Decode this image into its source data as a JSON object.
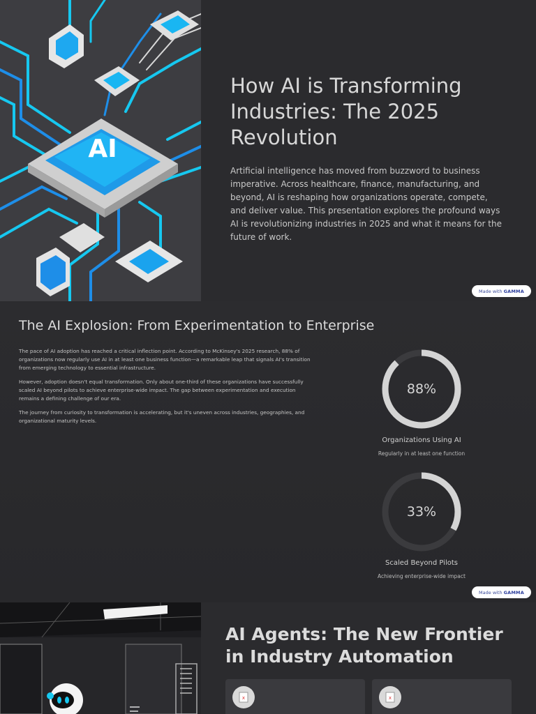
{
  "slide1": {
    "title": "How AI is Transforming Industries: The 2025 Revolution",
    "body": "Artificial intelligence has moved from buzzword to business imperative. Across healthcare, finance, manufacturing, and beyond, AI is reshaping how organizations operate, compete, and deliver value. This presentation explores the profound ways AI is revolutionizing industries in 2025 and what it means for the future of work.",
    "chip_text": "AI",
    "badge": {
      "prefix": "Made with",
      "brand": "GAMMA"
    }
  },
  "slide2": {
    "title": "The AI Explosion: From Experimentation to Enterprise",
    "paragraphs": [
      "The pace of AI adoption has reached a critical inflection point. According to McKinsey's 2025 research, 88% of organizations now regularly use AI in at least one business function—a remarkable leap that signals AI's transition from emerging technology to essential infrastructure.",
      "However, adoption doesn't equal transformation. Only about one-third of these organizations have successfully scaled AI beyond pilots to achieve enterprise-wide impact. The gap between experimentation and execution remains a defining challenge of our era.",
      "The journey from curiosity to transformation is accelerating, but it's uneven across industries, geographies, and organizational maturity levels."
    ],
    "stats": [
      {
        "value": "88%",
        "fraction": 0.88,
        "label": "Organizations Using AI",
        "sub": "Regularly in at least one function"
      },
      {
        "value": "33%",
        "fraction": 0.33,
        "label": "Scaled Beyond Pilots",
        "sub": "Achieving enterprise-wide impact"
      }
    ],
    "badge": {
      "prefix": "Made with",
      "brand": "GAMMA"
    }
  },
  "slide3": {
    "title": "AI Agents: The New Frontier in Industry Automation"
  },
  "colors": {
    "ring_fill": "#d4d4d4",
    "ring_track": "#3b3b3e",
    "accent_cyan": "#16c8f0",
    "accent_blue": "#1e8ee8"
  }
}
